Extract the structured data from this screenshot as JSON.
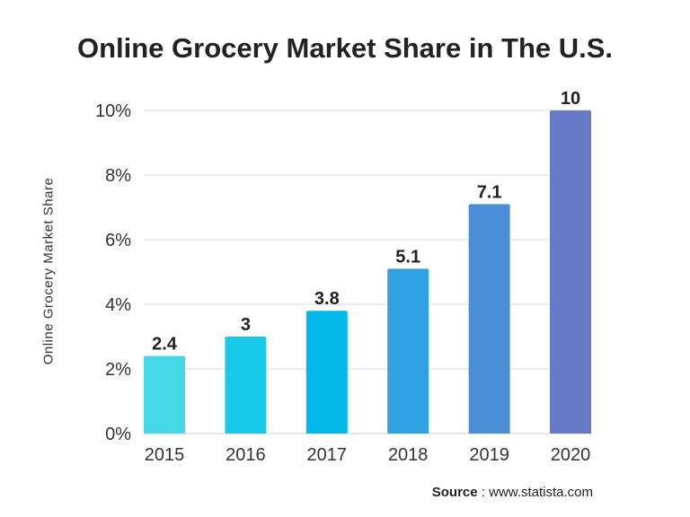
{
  "chart_data": {
    "type": "bar",
    "title": "Online Grocery Market Share in The U.S.",
    "xlabel": "",
    "ylabel": "Online Grocery Market Share",
    "categories": [
      "2015",
      "2016",
      "2017",
      "2018",
      "2019",
      "2020"
    ],
    "values": [
      2.4,
      3,
      3.8,
      5.1,
      7.1,
      10
    ],
    "data_labels": [
      "2.4",
      "3",
      "3.8",
      "5.1",
      "7.1",
      "10"
    ],
    "yticks": [
      0,
      2,
      4,
      6,
      8,
      10
    ],
    "ytick_labels": [
      "0%",
      "2%",
      "4%",
      "6%",
      "8%",
      "10%"
    ],
    "ylim": [
      0,
      10
    ],
    "grid": true,
    "legend": "none",
    "colors": [
      "#45d9e8",
      "#1ac9e9",
      "#04b8e9",
      "#2ea1e3",
      "#4a8ed8",
      "#6879c7"
    ]
  },
  "source": {
    "label": "Source",
    "text": " : www.statista.com"
  }
}
